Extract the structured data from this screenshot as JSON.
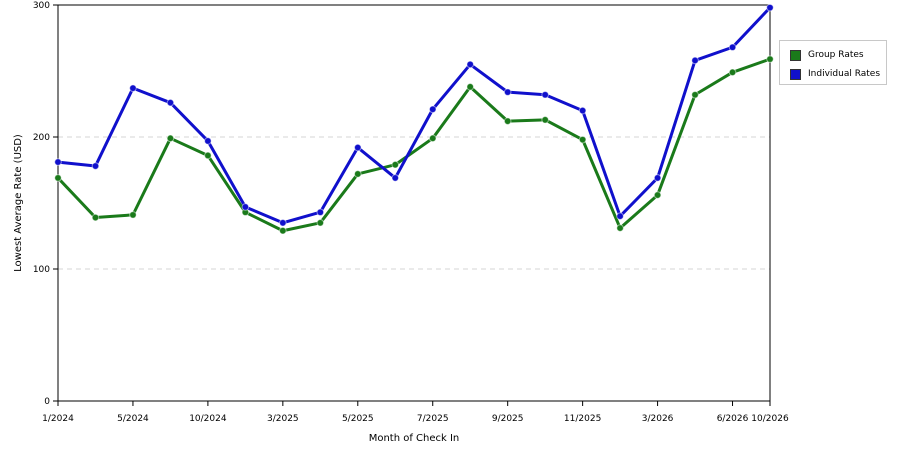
{
  "chart_data": {
    "type": "line",
    "xlabel": "Month of Check In",
    "ylabel": "Lowest Average Rate (USD)",
    "ylim": [
      0,
      300
    ],
    "yticks": [
      "0",
      "100",
      "200",
      "300"
    ],
    "x_tick_labels": [
      "1/2024",
      "5/2024",
      "10/2024",
      "3/2025",
      "5/2025",
      "7/2025",
      "9/2025",
      "11/2025",
      "3/2026",
      "6/2026",
      "10/2026"
    ],
    "x_tick_indices": [
      0,
      2,
      4,
      6,
      8,
      10,
      12,
      14,
      16,
      18,
      19
    ],
    "point_count": 20,
    "grid": "horizontal dashed",
    "legend_position": "right",
    "series": [
      {
        "name": "Group Rates",
        "color": "#1a7a1a",
        "values": [
          169,
          139,
          141,
          199,
          186,
          143,
          129,
          135,
          172,
          179,
          199,
          238,
          212,
          213,
          198,
          131,
          156,
          232,
          249,
          259
        ]
      },
      {
        "name": "Individual Rates",
        "color": "#1010cc",
        "values": [
          181,
          178,
          237,
          226,
          197,
          147,
          135,
          143,
          192,
          169,
          221,
          255,
          234,
          232,
          220,
          140,
          169,
          258,
          268,
          298
        ]
      }
    ]
  }
}
